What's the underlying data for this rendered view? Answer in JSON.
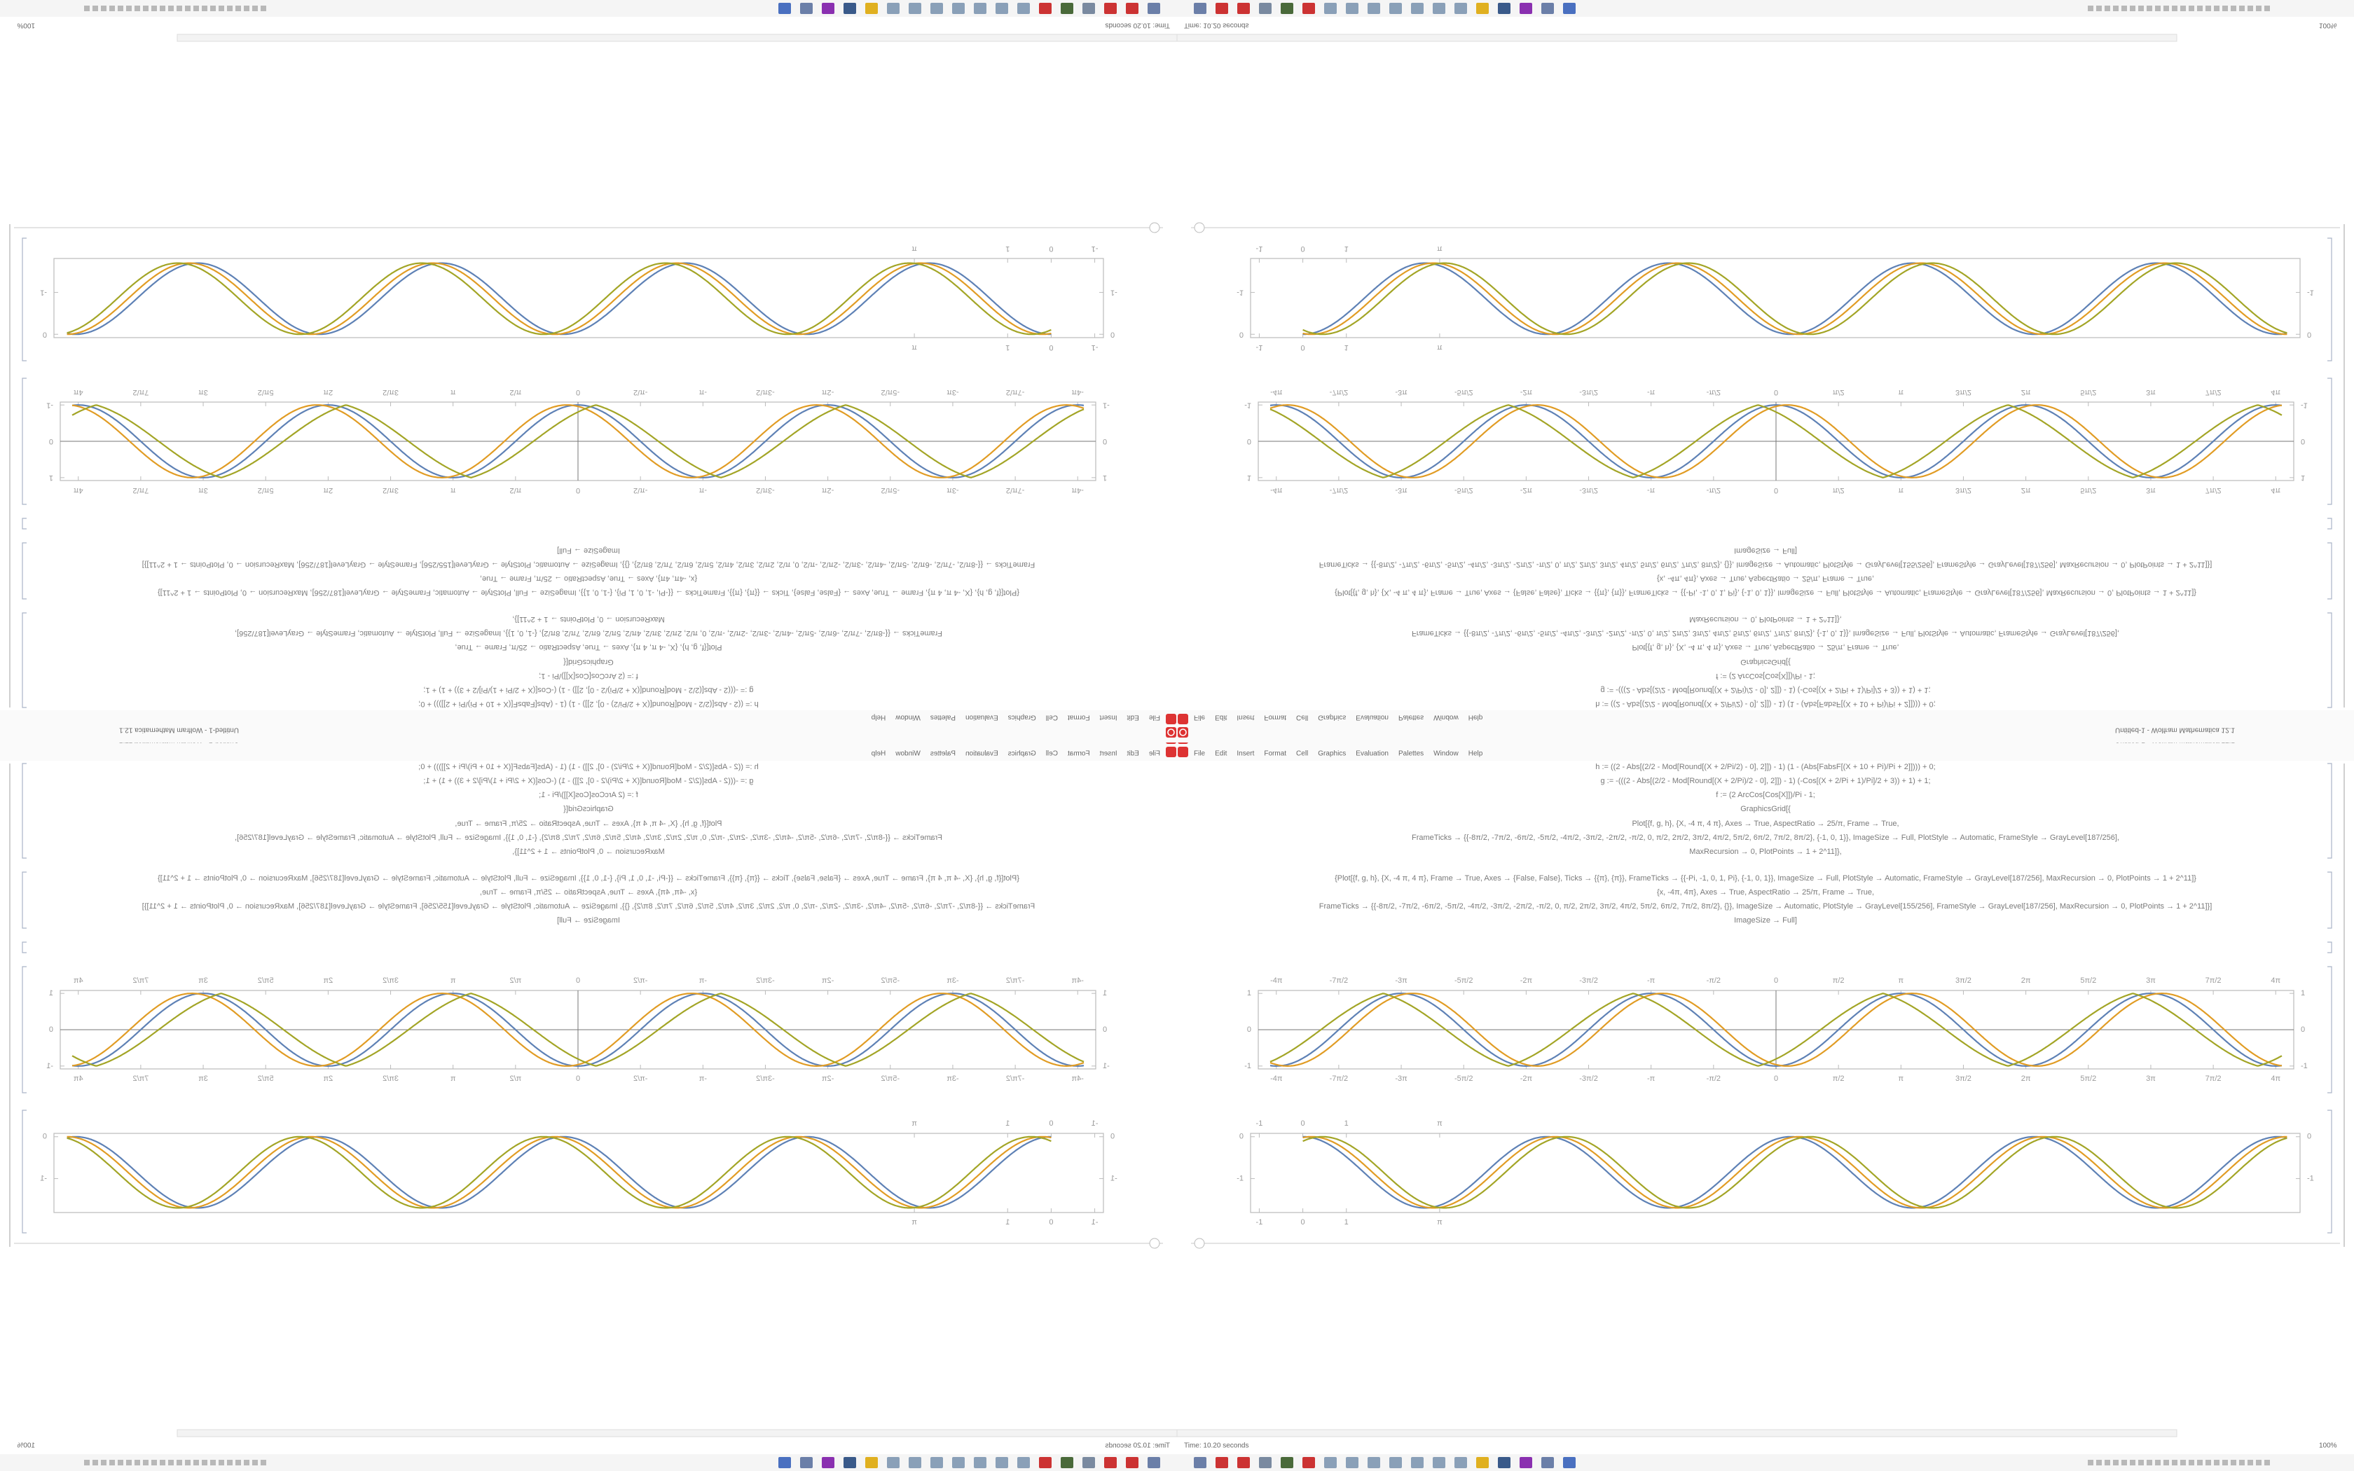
{
  "window": {
    "title": "Untitled-1 - Wolfram Mathematica 12.1",
    "menu": [
      "File",
      "Edit",
      "Insert",
      "Format",
      "Cell",
      "Graphics",
      "Evaluation",
      "Palettes",
      "Window",
      "Help"
    ],
    "status": "Time: 10.20 seconds",
    "zoom": "100%"
  },
  "notebook": {
    "input": [
      "h := ((2 - Abs[(2/2 - Mod[Round[(X + 2/Pi/2) - 0], 2]]) - 1) (1 - (Abs[FabsF[(X + 10 + Pi)/Pi + 2]]))) + 0;",
      "g := -(((2 - Abs[(2/2 - Mod[Round[(X + 2/Pi)/2 - 0], 2]]) - 1) (-Cos[(X + 2/Pi + 1)/Pi]/2 + 3)) + 1) + 1;",
      "f := (2 ArcCos[Cos[X]])/Pi - 1;",
      "GraphicsGrid[{",
      "Plot[{f, g, h}, {X, -4 π, 4 π}, Axes → True, AspectRatio → 25/π, Frame → True,",
      "FrameTicks → {{-8π/2, -7π/2, -6π/2, -5π/2, -4π/2, -3π/2, -2π/2, -π/2, 0, π/2, 2π/2, 3π/2, 4π/2, 5π/2, 6π/2, 7π/2, 8π/2}, {-1, 0, 1}}, ImageSize → Full, PlotStyle → Automatic, FrameStyle → GrayLevel[187/256],",
      "MaxRecursion → 0, PlotPoints → 1 + 2^11]},",
      "{Plot[{f, g, h}, {X, -4 π, 4 π}, Frame → True, Axes → {False, False}, Ticks → {{π}, {π}}, FrameTicks → {{-Pi, -1, 0, 1, Pi}, {-1, 0, 1}}, ImageSize → Full, PlotStyle → Automatic, FrameStyle → GrayLevel[187/256], MaxRecursion → 0, PlotPoints → 1 + 2^11]}",
      "{x, -4π, 4π}, Axes → True, AspectRatio → 25/π, Frame → True,",
      "FrameTicks → {{-8π/2, -7π/2, -6π/2, -5π/2, -4π/2, -3π/2, -2π/2, -π/2, 0, π/2, 2π/2, 3π/2, 4π/2, 5π/2, 6π/2, 7π/2, 8π/2}, {}}, ImageSize → Automatic, PlotStyle → GrayLevel[155/256], FrameStyle → GrayLevel[187/256], MaxRecursion → 0, PlotPoints → 1 + 2^11]}]",
      "ImageSize → Full]"
    ],
    "plots": [
      {
        "xlim": [
          -13.02,
          13.02
        ],
        "ylim": [
          -1.08,
          1.08
        ],
        "axes": true,
        "xticks": [
          {
            "value": -12.566,
            "label": "-4π"
          },
          {
            "value": -10.996,
            "label": "-7π/2"
          },
          {
            "value": -9.425,
            "label": "-3π"
          },
          {
            "value": -7.854,
            "label": "-5π/2"
          },
          {
            "value": -6.283,
            "label": "-2π"
          },
          {
            "value": -4.712,
            "label": "-3π/2"
          },
          {
            "value": -3.142,
            "label": "-π"
          },
          {
            "value": -1.571,
            "label": "-π/2"
          },
          0,
          {
            "value": 1.571,
            "label": "π/2"
          },
          {
            "value": 3.142,
            "label": "π"
          },
          {
            "value": 4.712,
            "label": "3π/2"
          },
          {
            "value": 6.283,
            "label": "2π"
          },
          {
            "value": 7.854,
            "label": "5π/2"
          },
          {
            "value": 9.425,
            "label": "3π"
          },
          {
            "value": 10.996,
            "label": "7π/2"
          },
          {
            "value": 12.566,
            "label": "4π"
          }
        ],
        "yticks": [
          -1,
          0,
          1
        ]
      },
      {
        "xlim": [
          -1.2,
          22.9
        ],
        "ylim": [
          -1.81,
          0.08
        ],
        "axes": false,
        "xticks": [
          -1,
          0,
          1,
          {
            "value": 3.142,
            "label": "π"
          }
        ],
        "yticks": [
          0,
          -1
        ]
      }
    ],
    "colors": [
      "#5e81b5",
      "#e19c24",
      "#a3a526"
    ]
  }
}
